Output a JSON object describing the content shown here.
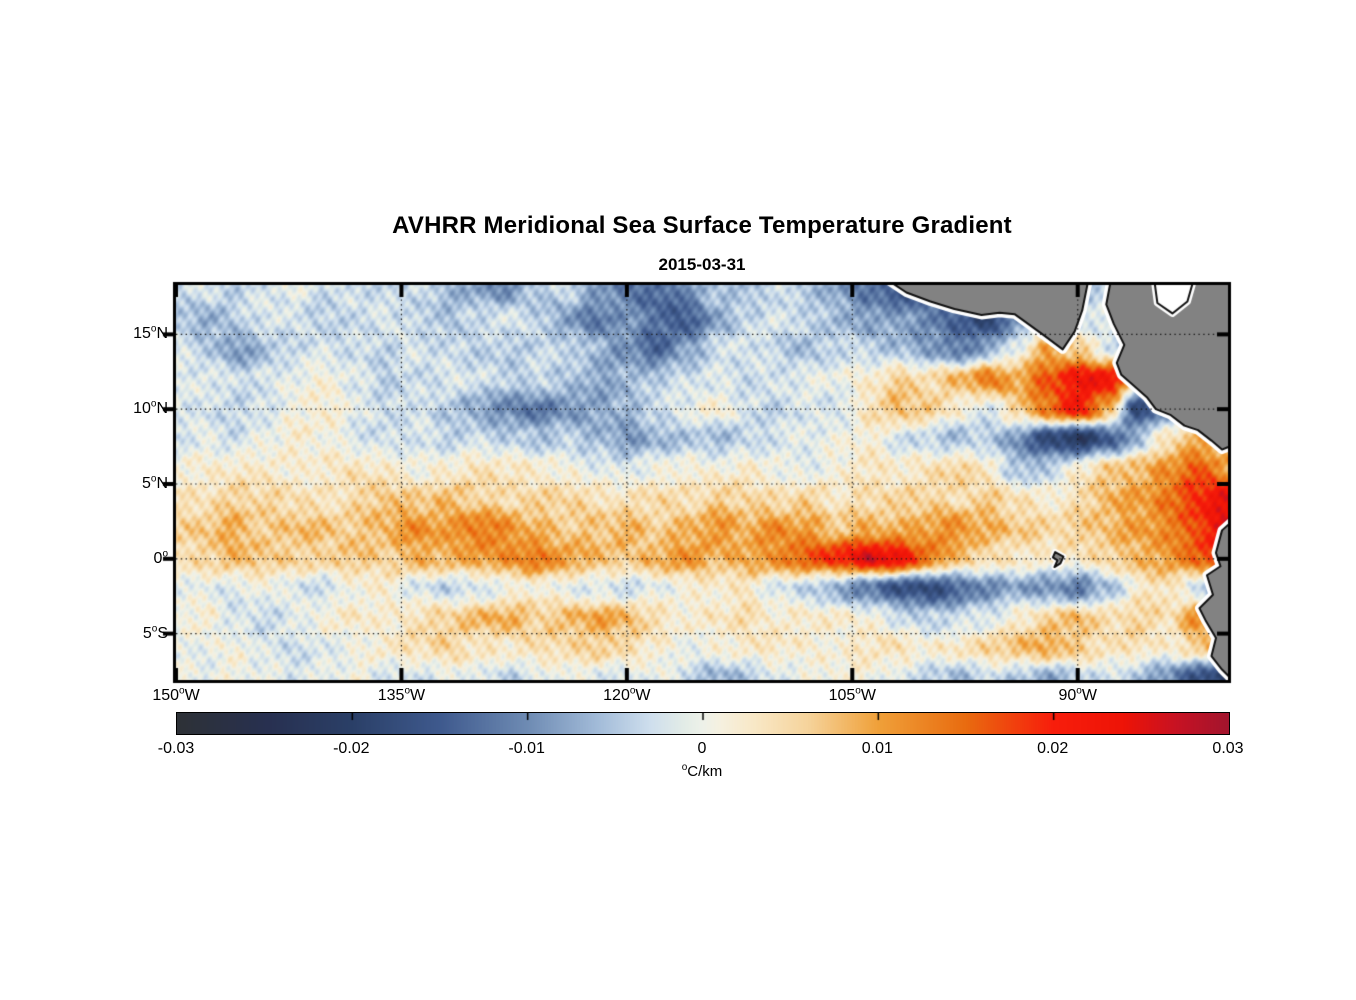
{
  "figure": {
    "title": "AVHRR Meridional Sea Surface Temperature Gradient",
    "subtitle": "2015-03-31"
  },
  "chart_data": {
    "type": "heatmap",
    "title": "AVHRR Meridional Sea Surface Temperature Gradient",
    "subtitle": "2015-03-31",
    "lon_range": [
      -150,
      -80
    ],
    "lat_range": [
      -8.1,
      18.3
    ],
    "x_ticks": [
      {
        "label": "150",
        "sup": "o",
        "suffix": "W",
        "lon": -150
      },
      {
        "label": "135",
        "sup": "o",
        "suffix": "W",
        "lon": -135
      },
      {
        "label": "120",
        "sup": "o",
        "suffix": "W",
        "lon": -120
      },
      {
        "label": "105",
        "sup": "o",
        "suffix": "W",
        "lon": -105
      },
      {
        "label": "90",
        "sup": "o",
        "suffix": "W",
        "lon": -90
      }
    ],
    "y_ticks": [
      {
        "label": "15",
        "sup": "o",
        "suffix": "N",
        "lat": 15
      },
      {
        "label": "10",
        "sup": "o",
        "suffix": "N",
        "lat": 10
      },
      {
        "label": "5",
        "sup": "o",
        "suffix": "N",
        "lat": 5
      },
      {
        "label": "0",
        "sup": "o",
        "suffix": "",
        "lat": 0
      },
      {
        "label": "5",
        "sup": "o",
        "suffix": "S",
        "lat": -5
      }
    ],
    "gridlines": {
      "lats": [
        15,
        10,
        5,
        0,
        -5
      ],
      "lons": [
        -135,
        -120,
        -105,
        -90
      ],
      "style": "dotted",
      "color": "#1a1a1a"
    },
    "colorbar": {
      "min": -0.03,
      "max": 0.03,
      "tick_labels": [
        "-0.03",
        "-0.02",
        "-0.01",
        "0",
        "0.01",
        "0.02",
        "0.03"
      ],
      "tick_values": [
        -0.03,
        -0.02,
        -0.01,
        0,
        0.01,
        0.02,
        0.03
      ],
      "unit_sup": "o",
      "unit_text": "C/km"
    },
    "colormap_stops_milli": [
      [
        -30,
        "#2e3237"
      ],
      [
        -25,
        "#283050"
      ],
      [
        -20,
        "#2b4068"
      ],
      [
        -15,
        "#3f5a8e"
      ],
      [
        -10,
        "#6f8cb4"
      ],
      [
        -6,
        "#a3bcd9"
      ],
      [
        -3,
        "#cfdfee"
      ],
      [
        -1,
        "#e4ede7"
      ],
      [
        0,
        "#eef2ea"
      ],
      [
        1,
        "#f6f1e0"
      ],
      [
        3,
        "#f9e8c6"
      ],
      [
        6,
        "#f6d49c"
      ],
      [
        10,
        "#f0a13a"
      ],
      [
        15,
        "#e96c10"
      ],
      [
        20,
        "#f81e0c"
      ],
      [
        24,
        "#ee1407"
      ],
      [
        27,
        "#c81223"
      ],
      [
        30,
        "#a3152e"
      ]
    ],
    "grid": {
      "units": "0.001 degC/km",
      "lon_start": -150,
      "lon_step": 2,
      "ncols": 36,
      "lat_start": 18,
      "lat_step": -2,
      "nrows": 14,
      "values": [
        [
          -3,
          -2,
          -4,
          -2,
          -1,
          -3,
          -2,
          -4,
          -3,
          -6,
          -8,
          -10,
          -5,
          -3,
          -8,
          -12,
          -14,
          -10,
          -4,
          -6,
          -3,
          -5,
          -8,
          -12,
          -16,
          -14,
          -8,
          -4,
          -2,
          -3,
          -5,
          -4,
          -2,
          -1,
          -2,
          -2
        ],
        [
          -5,
          -7,
          -4,
          -2,
          -3,
          -4,
          -3,
          -2,
          -4,
          -5,
          -3,
          -2,
          -4,
          -8,
          -12,
          -9,
          -13,
          -15,
          -8,
          -4,
          -2,
          -3,
          -6,
          -9,
          -8,
          -10,
          -14,
          -20,
          -10,
          -4,
          -3,
          -2,
          -3,
          -2,
          -1,
          -2
        ],
        [
          -2,
          -4,
          -9,
          -6,
          -3,
          -2,
          -3,
          -4,
          -2,
          -3,
          -4,
          -5,
          -4,
          -3,
          -6,
          -10,
          -14,
          -8,
          -3,
          -2,
          -4,
          -6,
          -3,
          -4,
          -6,
          -8,
          -12,
          -8,
          0,
          10,
          6,
          -2,
          -3,
          -2,
          -2,
          -1
        ],
        [
          -2,
          -1,
          -3,
          -2,
          0,
          1,
          -2,
          -4,
          -3,
          -2,
          -2,
          -4,
          -3,
          -5,
          -8,
          -6,
          -4,
          -3,
          -2,
          -3,
          -2,
          -1,
          0,
          2,
          6,
          4,
          8,
          14,
          10,
          16,
          22,
          24,
          6,
          -2,
          4,
          8
        ],
        [
          -1,
          -3,
          -4,
          -2,
          1,
          2,
          -1,
          -3,
          -2,
          -5,
          -8,
          -10,
          -12,
          -10,
          -8,
          -6,
          -3,
          -1,
          2,
          -2,
          -4,
          -2,
          -3,
          4,
          8,
          6,
          2,
          -2,
          6,
          14,
          22,
          10,
          -18,
          -10,
          2,
          6
        ],
        [
          -2,
          -1,
          -3,
          0,
          2,
          1,
          -2,
          -3,
          -2,
          -4,
          -3,
          -4,
          -5,
          -4,
          -6,
          -9,
          -7,
          -5,
          -6,
          -4,
          -2,
          -1,
          0,
          2,
          -2,
          -4,
          -6,
          -4,
          -10,
          -18,
          -22,
          -16,
          -6,
          4,
          8,
          6
        ],
        [
          1,
          2,
          3,
          2,
          1,
          3,
          4,
          2,
          0,
          2,
          4,
          3,
          2,
          1,
          -1,
          -2,
          0,
          2,
          1,
          2,
          0,
          -1,
          1,
          3,
          2,
          4,
          6,
          2,
          -6,
          -4,
          2,
          6,
          8,
          12,
          16,
          10
        ],
        [
          3,
          4,
          6,
          5,
          4,
          3,
          5,
          7,
          6,
          8,
          6,
          4,
          5,
          6,
          4,
          3,
          5,
          4,
          6,
          5,
          4,
          6,
          3,
          4,
          5,
          6,
          4,
          6,
          4,
          2,
          4,
          8,
          10,
          14,
          20,
          24
        ],
        [
          5,
          7,
          9,
          6,
          8,
          7,
          6,
          9,
          12,
          10,
          14,
          12,
          8,
          6,
          7,
          9,
          6,
          8,
          11,
          9,
          12,
          10,
          7,
          9,
          8,
          10,
          12,
          9,
          7,
          5,
          6,
          8,
          10,
          12,
          18,
          26
        ],
        [
          4,
          5,
          8,
          7,
          6,
          5,
          7,
          6,
          9,
          8,
          10,
          12,
          14,
          10,
          8,
          7,
          9,
          11,
          8,
          10,
          12,
          16,
          20,
          26,
          24,
          14,
          8,
          5,
          3,
          2,
          3,
          6,
          8,
          10,
          16,
          22
        ],
        [
          0,
          -1,
          -2,
          1,
          -2,
          -3,
          1,
          2,
          -2,
          -4,
          -3,
          0,
          2,
          -1,
          -2,
          -3,
          -1,
          1,
          2,
          3,
          -2,
          -4,
          -8,
          -12,
          -16,
          -18,
          -14,
          -10,
          -8,
          -10,
          -12,
          -6,
          2,
          4,
          -4,
          -8
        ],
        [
          1,
          2,
          -2,
          -4,
          -1,
          2,
          3,
          1,
          4,
          6,
          8,
          9,
          6,
          8,
          10,
          8,
          4,
          2,
          3,
          4,
          2,
          3,
          2,
          1,
          -2,
          -4,
          -3,
          -2,
          2,
          6,
          8,
          4,
          6,
          4,
          12,
          24
        ],
        [
          -1,
          0,
          1,
          -2,
          -3,
          -1,
          0,
          2,
          4,
          6,
          3,
          2,
          4,
          5,
          6,
          4,
          2,
          0,
          1,
          2,
          3,
          2,
          1,
          3,
          4,
          2,
          3,
          5,
          8,
          10,
          6,
          3,
          4,
          2,
          6,
          10
        ],
        [
          0,
          -1,
          1,
          0,
          -2,
          -1,
          1,
          -2,
          -3,
          -1,
          0,
          -4,
          -2,
          0,
          -1,
          -2,
          0,
          -3,
          -7,
          -5,
          -2,
          0,
          2,
          1,
          -2,
          -4,
          -6,
          -3,
          -5,
          -8,
          -4,
          -2,
          -6,
          -10,
          -16,
          -20
        ]
      ]
    },
    "land": {
      "fill": "#828282",
      "outline": "#111111",
      "fringe": "#ffffff",
      "polygons": {
        "central_america_west": [
          [
            -102.6,
            18.6
          ],
          [
            -101.4,
            17.8
          ],
          [
            -99.8,
            17.2
          ],
          [
            -98.2,
            16.7
          ],
          [
            -96.4,
            16.3
          ],
          [
            -95.2,
            16.45
          ],
          [
            -94.2,
            16.35
          ],
          [
            -93.3,
            15.7
          ],
          [
            -92.2,
            14.9
          ],
          [
            -91.0,
            14.0
          ],
          [
            -90.2,
            15.2
          ],
          [
            -89.7,
            16.6
          ],
          [
            -89.3,
            18.6
          ]
        ],
        "central_america_east": [
          [
            -87.8,
            18.6
          ],
          [
            -88.1,
            17.0
          ],
          [
            -87.6,
            15.7
          ],
          [
            -86.9,
            14.3
          ],
          [
            -87.4,
            13.1
          ],
          [
            -87.1,
            12.3
          ],
          [
            -86.3,
            11.6
          ],
          [
            -85.4,
            10.8
          ],
          [
            -84.8,
            10.0
          ],
          [
            -83.8,
            9.6
          ],
          [
            -82.9,
            8.9
          ],
          [
            -82.0,
            8.6
          ],
          [
            -81.1,
            7.9
          ],
          [
            -80.4,
            7.3
          ],
          [
            -79.4,
            7.7
          ],
          [
            -79.4,
            18.6
          ]
        ],
        "caribbean_inlet_water": [
          [
            -84.9,
            18.6
          ],
          [
            -84.7,
            17.1
          ],
          [
            -83.7,
            16.4
          ],
          [
            -82.7,
            17.2
          ],
          [
            -82.3,
            18.6
          ]
        ],
        "south_america": [
          [
            -79.4,
            2.8
          ],
          [
            -80.4,
            1.9
          ],
          [
            -80.8,
            0.4
          ],
          [
            -80.5,
            -0.5
          ],
          [
            -81.4,
            -1.1
          ],
          [
            -81.0,
            -2.4
          ],
          [
            -81.9,
            -3.3
          ],
          [
            -81.5,
            -4.1
          ],
          [
            -80.8,
            -5.3
          ],
          [
            -81.1,
            -6.5
          ],
          [
            -80.4,
            -7.4
          ],
          [
            -79.4,
            -8.4
          ]
        ],
        "galapagos": [
          [
            -91.5,
            0.45
          ],
          [
            -90.95,
            0.15
          ],
          [
            -91.15,
            -0.3
          ],
          [
            -91.55,
            -0.55
          ],
          [
            -91.35,
            -0.1
          ],
          [
            -91.65,
            0.1
          ]
        ]
      }
    }
  }
}
